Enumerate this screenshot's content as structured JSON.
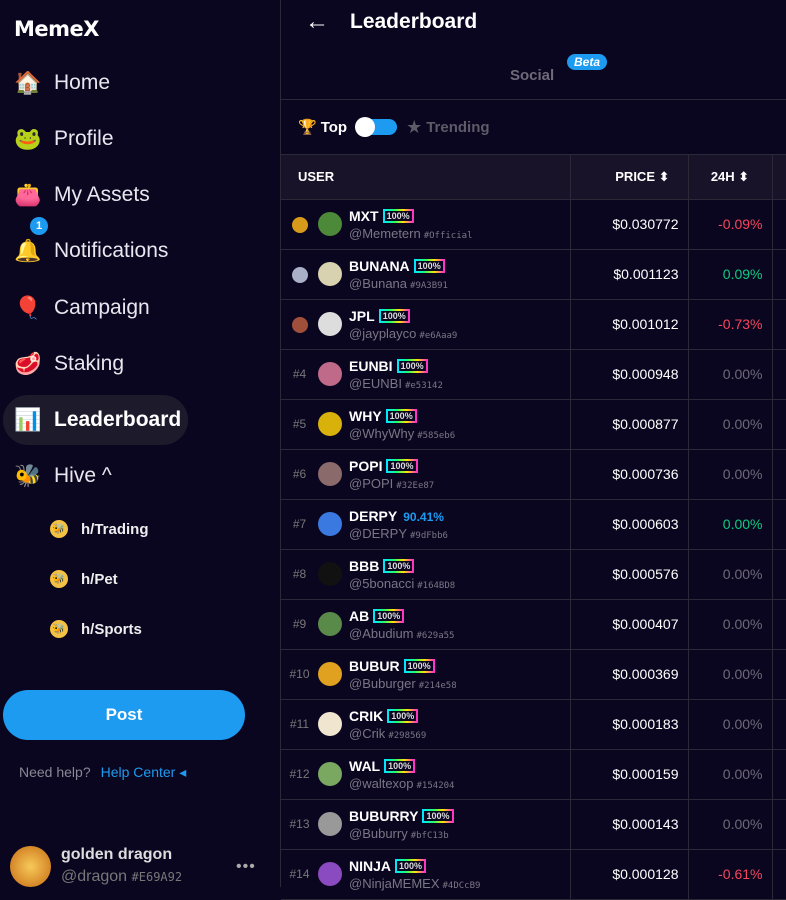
{
  "sidebar": {
    "logo": "MemeX",
    "items": [
      {
        "label": "Home",
        "icon": "🏠"
      },
      {
        "label": "Profile",
        "icon": "🐸"
      },
      {
        "label": "My Assets",
        "icon": "👛"
      },
      {
        "label": "Notifications",
        "icon": "🔔",
        "badge": "1"
      },
      {
        "label": "Campaign",
        "icon": "🎈"
      },
      {
        "label": "Staking",
        "icon": "🥩"
      },
      {
        "label": "Leaderboard",
        "icon": "📊"
      },
      {
        "label": "Hive ^",
        "icon": "🐝"
      }
    ],
    "hive": [
      {
        "label": "h/Trading"
      },
      {
        "label": "h/Pet"
      },
      {
        "label": "h/Sports"
      }
    ],
    "post": "Post",
    "need_help": "Need help?",
    "help_center": "Help Center ◂",
    "user": {
      "name": "golden dragon",
      "handle": "@dragon",
      "tag": "#E69A92",
      "more": "•••"
    }
  },
  "header": {
    "title": "Leaderboard",
    "back": "←"
  },
  "tabs": {
    "social": "Social",
    "beta": "Beta"
  },
  "filter": {
    "top": "Top",
    "trending": "Trending",
    "toggle_on": true
  },
  "table": {
    "columns": [
      "USER",
      "PRICE ⬍",
      "24H ⬍"
    ],
    "rows": [
      {
        "rank": "1",
        "medal": "#d89a1a",
        "name": "MXT",
        "pct": "100%",
        "handle": "@Memetern",
        "tag": "#Official",
        "price": "$0.030772",
        "change": "-0.09%",
        "color": "#4c8a3a"
      },
      {
        "rank": "2",
        "medal": "#a9b0c8",
        "name": "BUNANA",
        "pct": "100%",
        "handle": "@Bunana",
        "tag": "#9A3B91",
        "price": "$0.001123",
        "change": "0.09%",
        "color": "#d8d2b0"
      },
      {
        "rank": "3",
        "medal": "#a0503a",
        "name": "JPL",
        "pct": "100%",
        "handle": "@jayplayco",
        "tag": "#e6Aaa9",
        "price": "$0.001012",
        "change": "-0.73%",
        "color": "#ddd"
      },
      {
        "rank": "#4",
        "name": "EUNBI",
        "pct": "100%",
        "handle": "@EUNBI",
        "tag": "#e53142",
        "price": "$0.000948",
        "change": "0.00%",
        "color": "#c06a8a"
      },
      {
        "rank": "#5",
        "name": "WHY",
        "pct": "100%",
        "handle": "@WhyWhy",
        "tag": "#585eb6",
        "price": "$0.000877",
        "change": "0.00%",
        "color": "#d8b10a"
      },
      {
        "rank": "#6",
        "name": "POPI",
        "pct": "100%",
        "handle": "@POPI",
        "tag": "#32Ee87",
        "price": "$0.000736",
        "change": "0.00%",
        "color": "#8a6a6a"
      },
      {
        "rank": "#7",
        "name": "DERPY",
        "pct": "90.41%",
        "handle": "@DERPY",
        "tag": "#9dFbb6",
        "price": "$0.000603",
        "change": "0.00%",
        "color": "#3a7ae0",
        "plain": true,
        "pos": true
      },
      {
        "rank": "#8",
        "name": "BBB",
        "pct": "100%",
        "handle": "@5bonacci",
        "tag": "#164BD8",
        "price": "$0.000576",
        "change": "0.00%",
        "color": "#111"
      },
      {
        "rank": "#9",
        "name": "AB",
        "pct": "100%",
        "handle": "@Abudium",
        "tag": "#629a55",
        "price": "$0.000407",
        "change": "0.00%",
        "color": "#5a8a4a"
      },
      {
        "rank": "#10",
        "name": "BUBUR",
        "pct": "100%",
        "handle": "@Buburger",
        "tag": "#214e58",
        "price": "$0.000369",
        "change": "0.00%",
        "color": "#e0a020"
      },
      {
        "rank": "#11",
        "name": "CRIK",
        "pct": "100%",
        "handle": "@Crik",
        "tag": "#298569",
        "price": "$0.000183",
        "change": "0.00%",
        "color": "#f0e6d0"
      },
      {
        "rank": "#12",
        "name": "WAL",
        "pct": "100%",
        "handle": "@waltexop",
        "tag": "#154204",
        "price": "$0.000159",
        "change": "0.00%",
        "color": "#7aa860"
      },
      {
        "rank": "#13",
        "name": "BUBURRY",
        "pct": "100%",
        "handle": "@Buburry",
        "tag": "#bfC13b",
        "price": "$0.000143",
        "change": "0.00%",
        "color": "#999"
      },
      {
        "rank": "#14",
        "name": "NINJA",
        "pct": "100%",
        "handle": "@NinjaMEMEX",
        "tag": "#4DCcB9",
        "price": "$0.000128",
        "change": "-0.61%",
        "color": "#8a4ac0"
      }
    ]
  },
  "colors": {
    "bg": "#0b0620",
    "accent": "#1d9bf0",
    "negative": "#f6465d",
    "positive": "#0ecb81",
    "neutral": "#6e6a78"
  }
}
